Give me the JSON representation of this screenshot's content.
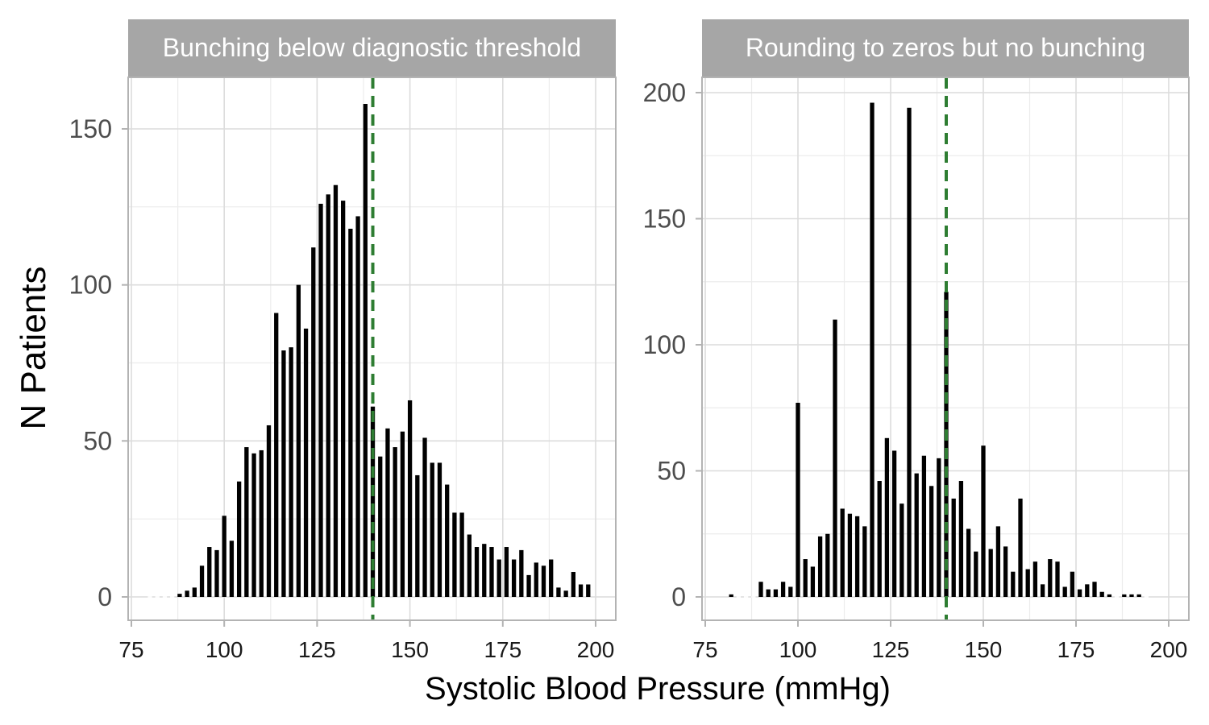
{
  "figure": {
    "xlabel": "Systolic Blood Pressure (mmHg)",
    "ylabel": "N Patients"
  },
  "colors": {
    "bar": "#000000",
    "threshold_line": "#2e7d32",
    "strip_bg": "#a6a6a6",
    "strip_text": "#ffffff",
    "grid_major": "#dcdcdc",
    "grid_minor": "#ececec",
    "panel_border": "#b3b3b3",
    "tick_text": "#4d4d4d",
    "axis_title": "#000000"
  },
  "chart_data": [
    {
      "type": "bar",
      "title": "Bunching below diagnostic threshold",
      "xlabel": "Systolic Blood Pressure (mmHg)",
      "ylabel": "N Patients",
      "xlim": [
        75,
        200
      ],
      "ylim": [
        0,
        160
      ],
      "x_ticks": [
        75,
        100,
        125,
        150,
        175,
        200
      ],
      "y_ticks": [
        0,
        50,
        100,
        150
      ],
      "threshold": 140,
      "x": [
        80,
        82,
        84,
        86,
        88,
        90,
        92,
        94,
        96,
        98,
        100,
        102,
        104,
        106,
        108,
        110,
        112,
        114,
        116,
        118,
        120,
        122,
        124,
        126,
        128,
        130,
        132,
        134,
        136,
        138,
        140,
        142,
        144,
        146,
        148,
        150,
        152,
        154,
        156,
        158,
        160,
        162,
        164,
        166,
        168,
        170,
        172,
        174,
        176,
        178,
        180,
        182,
        184,
        186,
        188,
        190,
        192,
        194,
        196,
        198
      ],
      "values": [
        0,
        0,
        0,
        0,
        1,
        2,
        3,
        10,
        16,
        15,
        26,
        18,
        37,
        48,
        46,
        47,
        55,
        91,
        79,
        80,
        100,
        86,
        112,
        126,
        129,
        132,
        127,
        118,
        122,
        158,
        61,
        45,
        54,
        48,
        53,
        63,
        39,
        51,
        43,
        43,
        36,
        27,
        27,
        20,
        16,
        17,
        16,
        12,
        16,
        12,
        15,
        7,
        11,
        10,
        12,
        3,
        2,
        8,
        4,
        4
      ]
    },
    {
      "type": "bar",
      "title": "Rounding to zeros but no bunching",
      "xlabel": "Systolic Blood Pressure (mmHg)",
      "ylabel": "N Patients",
      "xlim": [
        75,
        200
      ],
      "ylim": [
        0,
        200
      ],
      "x_ticks": [
        75,
        100,
        125,
        150,
        175,
        200
      ],
      "y_ticks": [
        0,
        50,
        100,
        150,
        200
      ],
      "threshold": 140,
      "x": [
        82,
        84,
        86,
        88,
        90,
        92,
        94,
        96,
        98,
        100,
        102,
        104,
        106,
        108,
        110,
        112,
        114,
        116,
        118,
        120,
        122,
        124,
        126,
        128,
        130,
        132,
        134,
        136,
        138,
        140,
        142,
        144,
        146,
        148,
        150,
        152,
        154,
        156,
        158,
        160,
        162,
        164,
        166,
        168,
        170,
        172,
        174,
        176,
        178,
        180,
        182,
        184,
        186,
        188,
        190,
        192,
        194
      ],
      "values": [
        1,
        0,
        0,
        0,
        6,
        3,
        3,
        6,
        4,
        77,
        15,
        12,
        24,
        25,
        110,
        35,
        33,
        32,
        28,
        196,
        46,
        63,
        58,
        37,
        194,
        49,
        56,
        44,
        55,
        121,
        39,
        46,
        27,
        18,
        60,
        19,
        28,
        20,
        10,
        39,
        11,
        14,
        5,
        15,
        14,
        4,
        10,
        3,
        5,
        6,
        2,
        1,
        0,
        1,
        1,
        1,
        0
      ]
    }
  ]
}
